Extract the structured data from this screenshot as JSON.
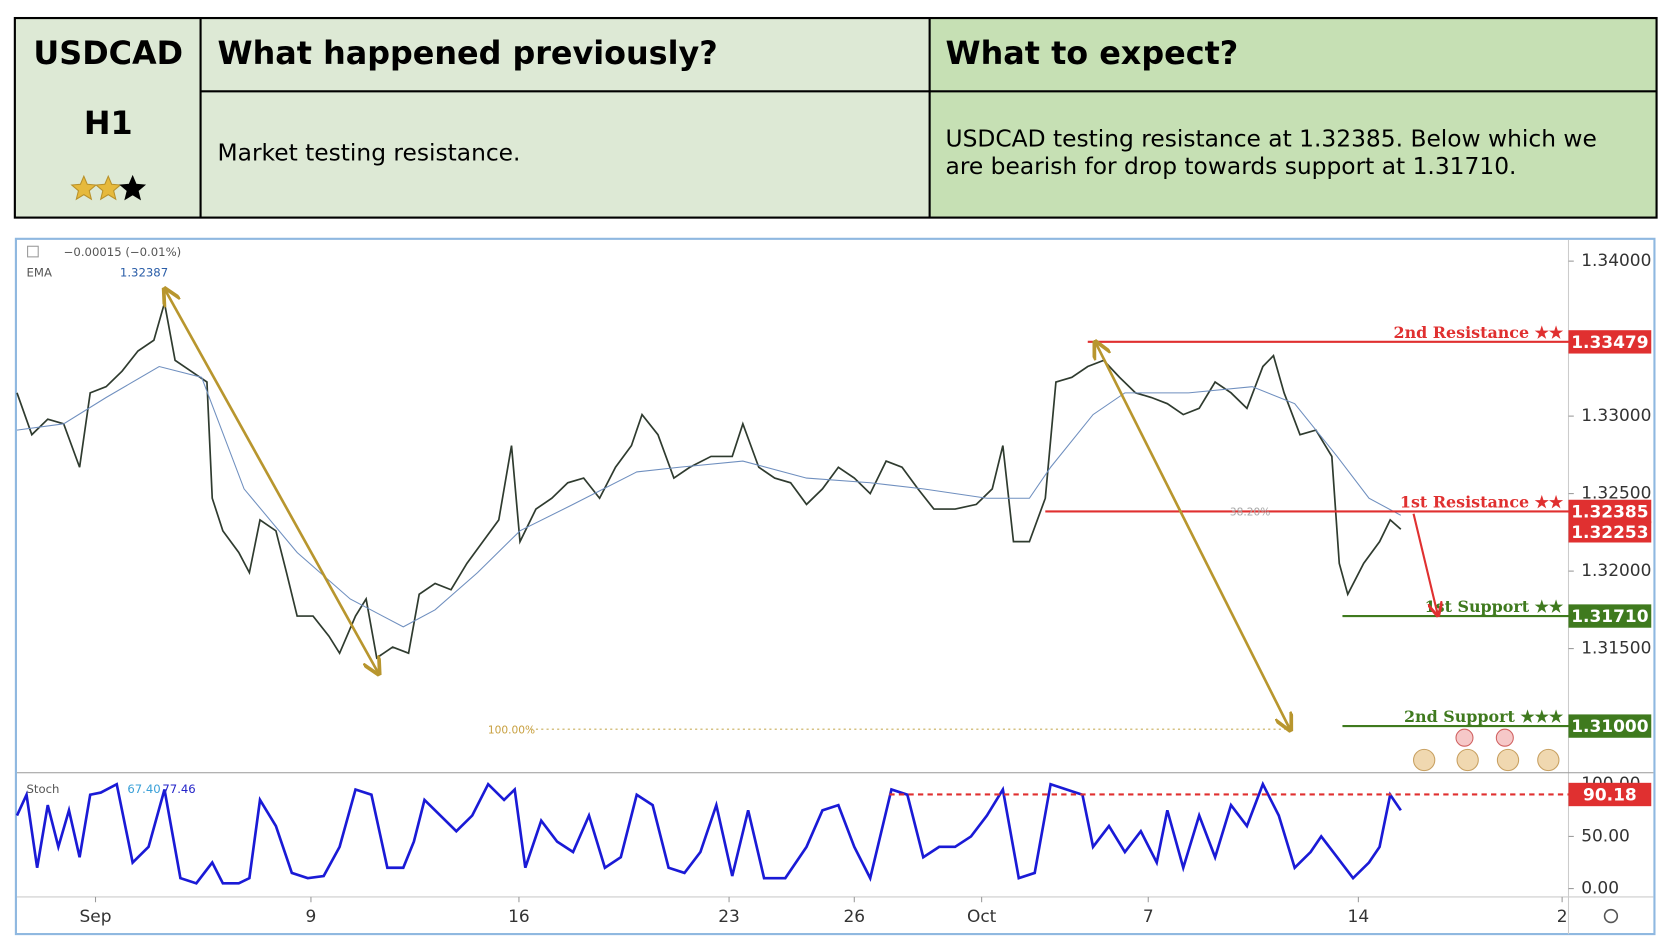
{
  "header": {
    "symbol": "USDCAD",
    "timeframe": "H1",
    "rating": 2,
    "rating_max": 3,
    "previous_title": "What happened previously?",
    "expect_title": "What to expect?",
    "previous_text": "Market testing resistance.",
    "expect_text": [
      "USDCAD testing resistance at 1.32385. Below which we",
      "are bearish for drop towards support at 1.31710."
    ]
  },
  "chart_data": [
    {
      "type": "line",
      "info": "−0.00015 (−0.01%)",
      "indicator_value": 1.32387,
      "xlim": [
        0,
        1462
      ],
      "ylim": [
        1.30699,
        1.34137
      ],
      "yticks": [
        {
          "value": 1.34,
          "label": "1.34000"
        },
        {
          "value": 1.33,
          "label": "1.33000"
        },
        {
          "value": 1.325,
          "label": "1.32500"
        },
        {
          "value": 1.32,
          "label": "1.32000"
        },
        {
          "value": 1.315,
          "label": "1.31500"
        }
      ],
      "series": [
        {
          "color": "#2f3b2f",
          "x": [
            0,
            14,
            29,
            44,
            59,
            69,
            84,
            99,
            114,
            129,
            139,
            149,
            164,
            179,
            184,
            194,
            209,
            219,
            229,
            244,
            254,
            264,
            279,
            294,
            304,
            319,
            329,
            339,
            354,
            369,
            379,
            394,
            409,
            424,
            439,
            454,
            466,
            474,
            489,
            504,
            519,
            534,
            549,
            564,
            579,
            589,
            604,
            619,
            634,
            654,
            674,
            684,
            699,
            714,
            729,
            744,
            759,
            774,
            789,
            804,
            819,
            834,
            849,
            864,
            884,
            904,
            919,
            929,
            939,
            954,
            969,
            979,
            994,
            1009,
            1024,
            1039,
            1054,
            1069,
            1084,
            1099,
            1114,
            1129,
            1144,
            1159,
            1174,
            1184,
            1194,
            1209,
            1224,
            1239,
            1246,
            1254,
            1269,
            1284,
            1294,
            1304
          ],
          "values": [
            1.3315,
            1.3288,
            1.3298,
            1.3295,
            1.3267,
            1.3315,
            1.3319,
            1.3329,
            1.3342,
            1.3349,
            1.3373,
            1.3336,
            1.3329,
            1.3322,
            1.3247,
            1.3226,
            1.3212,
            1.3199,
            1.3233,
            1.3226,
            1.3199,
            1.3171,
            1.3171,
            1.3158,
            1.3147,
            1.3171,
            1.3182,
            1.3144,
            1.3151,
            1.3147,
            1.3185,
            1.3192,
            1.3188,
            1.3205,
            1.3219,
            1.3233,
            1.3281,
            1.3219,
            1.324,
            1.3247,
            1.3257,
            1.326,
            1.3247,
            1.3267,
            1.3281,
            1.3301,
            1.3288,
            1.326,
            1.3267,
            1.3274,
            1.3274,
            1.3295,
            1.3267,
            1.326,
            1.3257,
            1.3243,
            1.3253,
            1.3267,
            1.326,
            1.325,
            1.3271,
            1.3267,
            1.3253,
            1.324,
            1.324,
            1.3243,
            1.3253,
            1.3281,
            1.3219,
            1.3219,
            1.3247,
            1.3322,
            1.3325,
            1.3332,
            1.3336,
            1.3325,
            1.3315,
            1.3312,
            1.3308,
            1.3301,
            1.3305,
            1.3322,
            1.3315,
            1.3305,
            1.3332,
            1.3339,
            1.3315,
            1.3288,
            1.3291,
            1.3274,
            1.3205,
            1.3185,
            1.3205,
            1.3219,
            1.3233,
            1.3227
          ]
        },
        {
          "name": "EMA",
          "color": "#6f8fbf",
          "x": [
            0,
            44,
            84,
            134,
            174,
            214,
            264,
            314,
            364,
            394,
            434,
            474,
            524,
            584,
            624,
            684,
            744,
            804,
            854,
            914,
            954,
            974,
            1014,
            1044,
            1104,
            1164,
            1204,
            1244,
            1274,
            1304
          ],
          "values": [
            1.3291,
            1.3295,
            1.3312,
            1.3332,
            1.3325,
            1.3253,
            1.3212,
            1.3182,
            1.3164,
            1.3175,
            1.3199,
            1.3226,
            1.3243,
            1.3264,
            1.3267,
            1.3271,
            1.326,
            1.3257,
            1.3253,
            1.3247,
            1.3247,
            1.3267,
            1.3301,
            1.3315,
            1.3315,
            1.3319,
            1.3308,
            1.3274,
            1.3247,
            1.3236
          ]
        }
      ],
      "levels": [
        {
          "name": "2nd Resistance ★★",
          "value": 1.33479,
          "value_label": "1.33479",
          "color": "#e03030"
        },
        {
          "name": "1st Resistance ★★",
          "value": 1.32385,
          "value_label": "1.32385",
          "color": "#e03030"
        },
        {
          "name": "1st Support ★★",
          "value": 1.3171,
          "value_label": "1.31710",
          "color": "#3f7a1e"
        },
        {
          "name": "2nd Support ★★★",
          "value": 1.31,
          "value_label": "1.31000",
          "color": "#3f7a1e"
        }
      ],
      "last_price": {
        "value": 1.32253,
        "label": "1.32253",
        "color": "#e03030"
      },
      "annotations": [
        "38.20%",
        "100.00%"
      ]
    },
    {
      "type": "line",
      "title": "Stoch",
      "printed_values": [
        {
          "value": 67.4,
          "label": "67.40",
          "color": "#3aa0d8"
        },
        {
          "value": 77.46,
          "label": "77.46",
          "color": "#2323c8"
        }
      ],
      "xlim": [
        0,
        1462
      ],
      "ylim": [
        -8,
        109
      ],
      "yticks": [
        {
          "value": 100,
          "label": "100.00"
        },
        {
          "value": 50,
          "label": "50.00"
        },
        {
          "value": 0,
          "label": "0.00"
        }
      ],
      "xticks": [
        {
          "value": 74,
          "label": "Sep"
        },
        {
          "value": 277,
          "label": "9"
        },
        {
          "value": 473,
          "label": "16"
        },
        {
          "value": 671,
          "label": "23"
        },
        {
          "value": 789,
          "label": "26"
        },
        {
          "value": 909,
          "label": "Oct"
        },
        {
          "value": 1066,
          "label": "7"
        },
        {
          "value": 1264,
          "label": "14"
        },
        {
          "value": 1456,
          "label": "2"
        }
      ],
      "series": [
        {
          "color": "#1a1ad6",
          "x": [
            0,
            9,
            19,
            29,
            39,
            49,
            59,
            69,
            79,
            94,
            109,
            124,
            139,
            154,
            169,
            184,
            194,
            209,
            219,
            229,
            244,
            259,
            274,
            289,
            304,
            319,
            334,
            349,
            364,
            374,
            384,
            399,
            414,
            429,
            444,
            459,
            469,
            479,
            494,
            509,
            524,
            539,
            554,
            569,
            584,
            599,
            614,
            629,
            644,
            659,
            674,
            689,
            704,
            724,
            744,
            759,
            774,
            789,
            804,
            824,
            839,
            854,
            869,
            884,
            899,
            914,
            929,
            944,
            959,
            974,
            989,
            1004,
            1014,
            1029,
            1044,
            1059,
            1074,
            1084,
            1099,
            1114,
            1129,
            1144,
            1159,
            1174,
            1189,
            1204,
            1219,
            1229,
            1244,
            1259,
            1274,
            1284,
            1294,
            1304
          ],
          "values": [
            70,
            90,
            20,
            80,
            40,
            75,
            30,
            90,
            92,
            100,
            25,
            40,
            95,
            10,
            5,
            25,
            5,
            5,
            10,
            85,
            60,
            15,
            10,
            12,
            40,
            95,
            90,
            20,
            20,
            45,
            85,
            70,
            55,
            70,
            100,
            85,
            95,
            20,
            65,
            45,
            35,
            70,
            20,
            30,
            90,
            80,
            20,
            15,
            35,
            80,
            12,
            75,
            10,
            10,
            40,
            75,
            80,
            40,
            10,
            95,
            90,
            30,
            40,
            40,
            50,
            70,
            95,
            10,
            15,
            100,
            95,
            90,
            40,
            60,
            35,
            55,
            25,
            75,
            20,
            70,
            30,
            80,
            60,
            100,
            70,
            20,
            35,
            50,
            30,
            10,
            25,
            40,
            90,
            75
          ]
        }
      ],
      "levels": [
        {
          "value": 90.18,
          "value_label": "90.18",
          "color": "#e03030"
        }
      ]
    }
  ]
}
